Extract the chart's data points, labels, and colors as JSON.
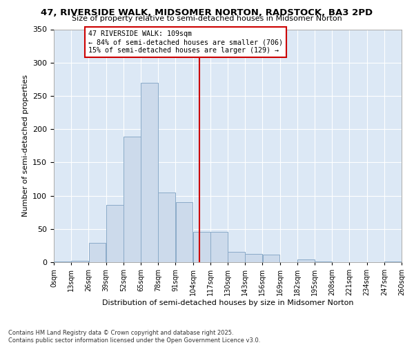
{
  "title": "47, RIVERSIDE WALK, MIDSOMER NORTON, RADSTOCK, BA3 2PD",
  "subtitle": "Size of property relative to semi-detached houses in Midsomer Norton",
  "xlabel": "Distribution of semi-detached houses by size in Midsomer Norton",
  "ylabel": "Number of semi-detached properties",
  "footnote1": "Contains HM Land Registry data © Crown copyright and database right 2025.",
  "footnote2": "Contains public sector information licensed under the Open Government Licence v3.0.",
  "annotation_line1": "47 RIVERSIDE WALK: 109sqm",
  "annotation_line2": "← 84% of semi-detached houses are smaller (706)",
  "annotation_line3": "15% of semi-detached houses are larger (129) →",
  "property_size": 109,
  "bar_color": "#ccdaeb",
  "bar_edge_color": "#8aaac8",
  "vline_color": "#cc0000",
  "annotation_box_color": "#cc0000",
  "ylim": [
    0,
    350
  ],
  "yticks": [
    0,
    50,
    100,
    150,
    200,
    250,
    300,
    350
  ],
  "bin_edges": [
    0,
    13,
    26,
    39,
    52,
    65,
    78,
    91,
    104,
    117,
    130,
    143,
    156,
    169,
    182,
    195,
    208,
    221,
    234,
    247,
    260
  ],
  "bin_labels": [
    "0sqm",
    "13sqm",
    "26sqm",
    "39sqm",
    "52sqm",
    "65sqm",
    "78sqm",
    "91sqm",
    "104sqm",
    "117sqm",
    "130sqm",
    "143sqm",
    "156sqm",
    "169sqm",
    "182sqm",
    "195sqm",
    "208sqm",
    "221sqm",
    "234sqm",
    "247sqm",
    "260sqm"
  ],
  "counts": [
    1,
    2,
    29,
    86,
    189,
    270,
    105,
    90,
    46,
    46,
    16,
    12,
    11,
    0,
    4,
    1,
    0,
    0,
    0,
    1
  ]
}
